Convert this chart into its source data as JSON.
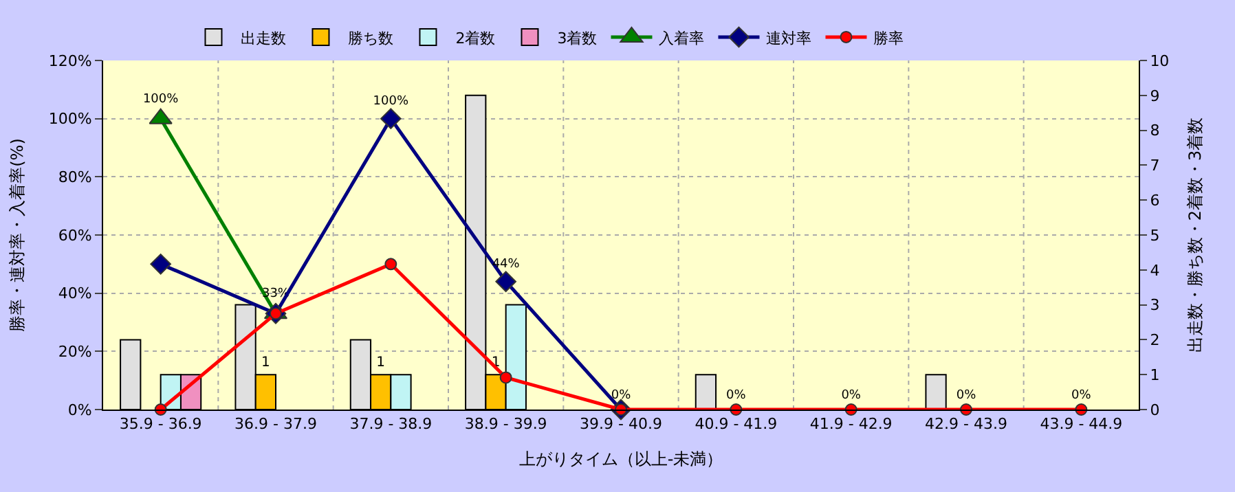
{
  "chart_data": {
    "type": "bar",
    "xlabel": "上がりタイム（以上-未満）",
    "ylabel": "勝率・連対率・入着率(%)",
    "y2label": "出走数・勝ち数・2着数・3着数",
    "categories": [
      "35.9 - 36.9",
      "36.9 - 37.9",
      "37.9 - 38.9",
      "38.9 - 39.9",
      "39.9 - 40.9",
      "40.9 - 41.9",
      "41.9 - 42.9",
      "42.9 - 43.9",
      "43.9 - 44.9"
    ],
    "series": [
      {
        "name": "出走数",
        "axis": "y2",
        "color": "#e0e0e0",
        "values": [
          2,
          3,
          2,
          9,
          null,
          1,
          null,
          1,
          null
        ]
      },
      {
        "name": "勝ち数",
        "axis": "y2",
        "color": "#ffc000",
        "values": [
          null,
          1,
          1,
          1,
          null,
          null,
          null,
          null,
          null
        ],
        "value_labels": [
          null,
          "1",
          "1",
          "1",
          null,
          null,
          null,
          null,
          null
        ]
      },
      {
        "name": "2着数",
        "axis": "y2",
        "color": "#c0f4f4",
        "values": [
          1,
          null,
          1,
          3,
          null,
          null,
          null,
          null,
          null
        ]
      },
      {
        "name": "3着数",
        "axis": "y2",
        "color": "#f090c0",
        "values": [
          1,
          null,
          null,
          null,
          null,
          null,
          null,
          null,
          null
        ]
      },
      {
        "name": "入着率",
        "type": "line",
        "axis": "y",
        "color": "#008000",
        "marker": "triangle",
        "values": [
          100,
          33,
          null,
          null,
          null,
          null,
          null,
          null,
          null
        ],
        "value_labels": [
          "100%",
          "33%",
          null,
          null,
          null,
          null,
          null,
          null,
          null
        ]
      },
      {
        "name": "連対率",
        "type": "line",
        "axis": "y",
        "color": "#000080",
        "marker": "diamond",
        "values": [
          50,
          33,
          100,
          44,
          0,
          null,
          null,
          null,
          null
        ],
        "value_labels": [
          null,
          null,
          "100%",
          "44%",
          null,
          null,
          null,
          null,
          null
        ]
      },
      {
        "name": "勝率",
        "type": "line",
        "axis": "y",
        "color": "#ff0000",
        "marker": "circle",
        "values": [
          0,
          33,
          50,
          11,
          0,
          0,
          0,
          0,
          0
        ],
        "value_labels": [
          null,
          null,
          null,
          null,
          "0%",
          "0%",
          "0%",
          "0%",
          "0%"
        ]
      }
    ],
    "ylim": [
      0,
      120
    ],
    "yticks": [
      {
        "value": 0,
        "label": "0%"
      },
      {
        "value": 20,
        "label": "20%"
      },
      {
        "value": 40,
        "label": "40%"
      },
      {
        "value": 60,
        "label": "60%"
      },
      {
        "value": 80,
        "label": "80%"
      },
      {
        "value": 100,
        "label": "100%"
      },
      {
        "value": 120,
        "label": "120%"
      }
    ],
    "y2lim": [
      0,
      10
    ],
    "y2ticks": [
      0,
      1,
      2,
      3,
      4,
      5,
      6,
      7,
      8,
      9,
      10
    ],
    "grid": true,
    "legend": "top"
  }
}
